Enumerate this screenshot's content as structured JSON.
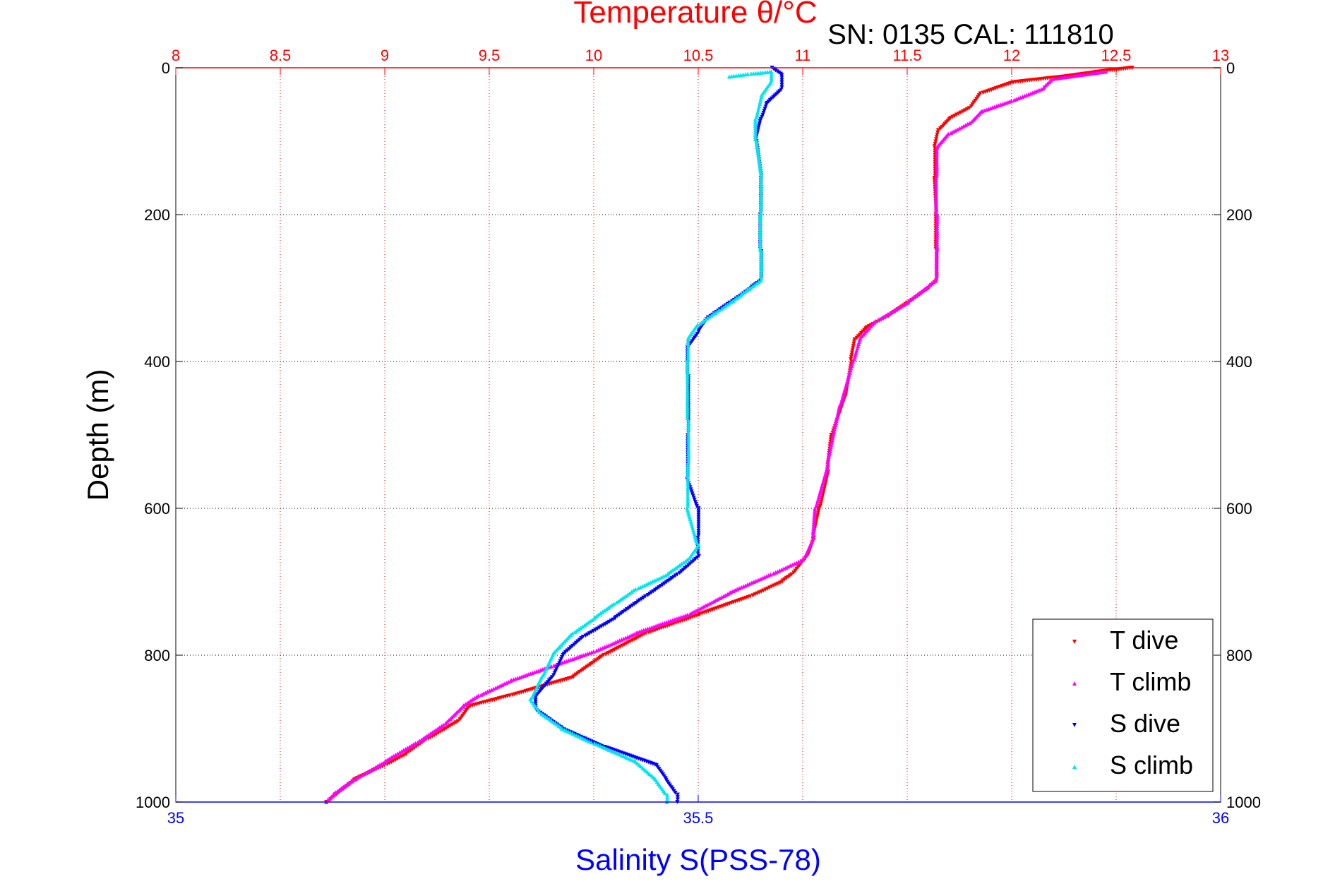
{
  "chart_data": {
    "type": "scatter",
    "title": "Temperature θ/°C",
    "subtitle": "SN: 0135  CAL: 111810",
    "y_label": "Depth (m)",
    "bottom_label": "Salinity S(PSS-78)",
    "y_axis": {
      "range": [
        1000,
        0
      ],
      "reversed": true,
      "ticks": [
        0,
        200,
        400,
        600,
        800,
        1000
      ],
      "tick_labels": [
        "0",
        "200",
        "400",
        "600",
        "800",
        "1000"
      ]
    },
    "temperature_axis": {
      "position": "top",
      "range": [
        8,
        13
      ],
      "ticks": [
        8,
        8.5,
        9,
        9.5,
        10,
        10.5,
        11,
        11.5,
        12,
        12.5,
        13
      ],
      "tick_labels": [
        "8",
        "8.5",
        "9",
        "9.5",
        "10",
        "10.5",
        "11",
        "11.5",
        "12",
        "12.5",
        "13"
      ]
    },
    "salinity_axis": {
      "position": "bottom",
      "range": [
        35,
        36
      ],
      "ticks": [
        35,
        35.5,
        36
      ],
      "tick_labels": [
        "35",
        "35.5",
        "36"
      ]
    },
    "grid": true,
    "legend_position": "bottom-right",
    "colors": {
      "t_dive": "#ff0000",
      "t_climb": "#ff00ff",
      "s_dive": "#0000ff",
      "s_climb": "#00e5ee",
      "axis": "#000000",
      "temp_axis": "#ff0000",
      "sal_axis": "#0000ff"
    },
    "series": [
      {
        "name": "T dive",
        "axis": "temperature",
        "marker": "triangle-down",
        "points": [
          [
            12.58,
            0
          ],
          [
            12.4,
            6
          ],
          [
            12.25,
            12
          ],
          [
            12.0,
            20
          ],
          [
            11.85,
            35
          ],
          [
            11.8,
            55
          ],
          [
            11.7,
            70
          ],
          [
            11.65,
            85
          ],
          [
            11.63,
            110
          ],
          [
            11.63,
            150
          ],
          [
            11.64,
            200
          ],
          [
            11.64,
            250
          ],
          [
            11.64,
            290
          ],
          [
            11.6,
            300
          ],
          [
            11.5,
            320
          ],
          [
            11.4,
            340
          ],
          [
            11.3,
            355
          ],
          [
            11.25,
            370
          ],
          [
            11.23,
            400
          ],
          [
            11.2,
            450
          ],
          [
            11.14,
            500
          ],
          [
            11.12,
            550
          ],
          [
            11.08,
            600
          ],
          [
            11.05,
            640
          ],
          [
            11.02,
            665
          ],
          [
            10.95,
            690
          ],
          [
            10.9,
            700
          ],
          [
            10.75,
            720
          ],
          [
            10.5,
            745
          ],
          [
            10.25,
            770
          ],
          [
            10.05,
            800
          ],
          [
            9.9,
            830
          ],
          [
            9.6,
            855
          ],
          [
            9.4,
            870
          ],
          [
            9.35,
            890
          ],
          [
            9.2,
            915
          ],
          [
            9.1,
            935
          ],
          [
            9.0,
            950
          ],
          [
            8.85,
            970
          ],
          [
            8.72,
            1000
          ]
        ]
      },
      {
        "name": "T climb",
        "axis": "temperature",
        "marker": "triangle-up",
        "points": [
          [
            12.45,
            5
          ],
          [
            12.2,
            15
          ],
          [
            12.15,
            28
          ],
          [
            12.0,
            45
          ],
          [
            11.85,
            60
          ],
          [
            11.8,
            75
          ],
          [
            11.7,
            90
          ],
          [
            11.64,
            110
          ],
          [
            11.64,
            150
          ],
          [
            11.64,
            200
          ],
          [
            11.64,
            250
          ],
          [
            11.64,
            290
          ],
          [
            11.5,
            320
          ],
          [
            11.35,
            345
          ],
          [
            11.27,
            370
          ],
          [
            11.24,
            400
          ],
          [
            11.18,
            460
          ],
          [
            11.12,
            540
          ],
          [
            11.06,
            600
          ],
          [
            11.05,
            640
          ],
          [
            11.0,
            670
          ],
          [
            10.85,
            690
          ],
          [
            10.65,
            715
          ],
          [
            10.45,
            745
          ],
          [
            10.2,
            770
          ],
          [
            10.0,
            795
          ],
          [
            9.8,
            815
          ],
          [
            9.6,
            835
          ],
          [
            9.45,
            855
          ],
          [
            9.37,
            870
          ],
          [
            9.28,
            895
          ],
          [
            9.15,
            920
          ],
          [
            9.0,
            945
          ],
          [
            8.88,
            965
          ],
          [
            8.75,
            990
          ],
          [
            8.72,
            1000
          ]
        ]
      },
      {
        "name": "S dive",
        "axis": "salinity",
        "marker": "triangle-down",
        "points": [
          [
            35.57,
            0
          ],
          [
            35.58,
            10
          ],
          [
            35.58,
            30
          ],
          [
            35.565,
            50
          ],
          [
            35.56,
            70
          ],
          [
            35.555,
            100
          ],
          [
            35.56,
            150
          ],
          [
            35.56,
            200
          ],
          [
            35.56,
            250
          ],
          [
            35.56,
            290
          ],
          [
            35.55,
            300
          ],
          [
            35.53,
            320
          ],
          [
            35.51,
            340
          ],
          [
            35.5,
            360
          ],
          [
            35.49,
            380
          ],
          [
            35.49,
            420
          ],
          [
            35.49,
            500
          ],
          [
            35.49,
            560
          ],
          [
            35.5,
            600
          ],
          [
            35.5,
            640
          ],
          [
            35.5,
            665
          ],
          [
            35.48,
            690
          ],
          [
            35.45,
            720
          ],
          [
            35.42,
            750
          ],
          [
            35.39,
            775
          ],
          [
            35.37,
            800
          ],
          [
            35.36,
            830
          ],
          [
            35.345,
            855
          ],
          [
            35.345,
            875
          ],
          [
            35.37,
            900
          ],
          [
            35.41,
            925
          ],
          [
            35.46,
            950
          ],
          [
            35.47,
            970
          ],
          [
            35.48,
            990
          ],
          [
            35.48,
            1000
          ]
        ]
      },
      {
        "name": "S climb",
        "axis": "salinity",
        "marker": "triangle-up",
        "points": [
          [
            35.53,
            12
          ],
          [
            35.55,
            8
          ],
          [
            35.57,
            5
          ],
          [
            35.57,
            20
          ],
          [
            35.56,
            40
          ],
          [
            35.555,
            70
          ],
          [
            35.555,
            100
          ],
          [
            35.56,
            150
          ],
          [
            35.56,
            200
          ],
          [
            35.56,
            250
          ],
          [
            35.56,
            290
          ],
          [
            35.54,
            310
          ],
          [
            35.52,
            330
          ],
          [
            35.5,
            350
          ],
          [
            35.49,
            370
          ],
          [
            35.49,
            400
          ],
          [
            35.49,
            480
          ],
          [
            35.49,
            540
          ],
          [
            35.49,
            600
          ],
          [
            35.5,
            650
          ],
          [
            35.49,
            670
          ],
          [
            35.47,
            690
          ],
          [
            35.44,
            710
          ],
          [
            35.42,
            730
          ],
          [
            35.4,
            750
          ],
          [
            35.38,
            770
          ],
          [
            35.36,
            800
          ],
          [
            35.35,
            830
          ],
          [
            35.34,
            860
          ],
          [
            35.35,
            880
          ],
          [
            35.37,
            900
          ],
          [
            35.4,
            920
          ],
          [
            35.44,
            945
          ],
          [
            35.46,
            970
          ],
          [
            35.47,
            990
          ],
          [
            35.47,
            1000
          ]
        ]
      }
    ]
  }
}
